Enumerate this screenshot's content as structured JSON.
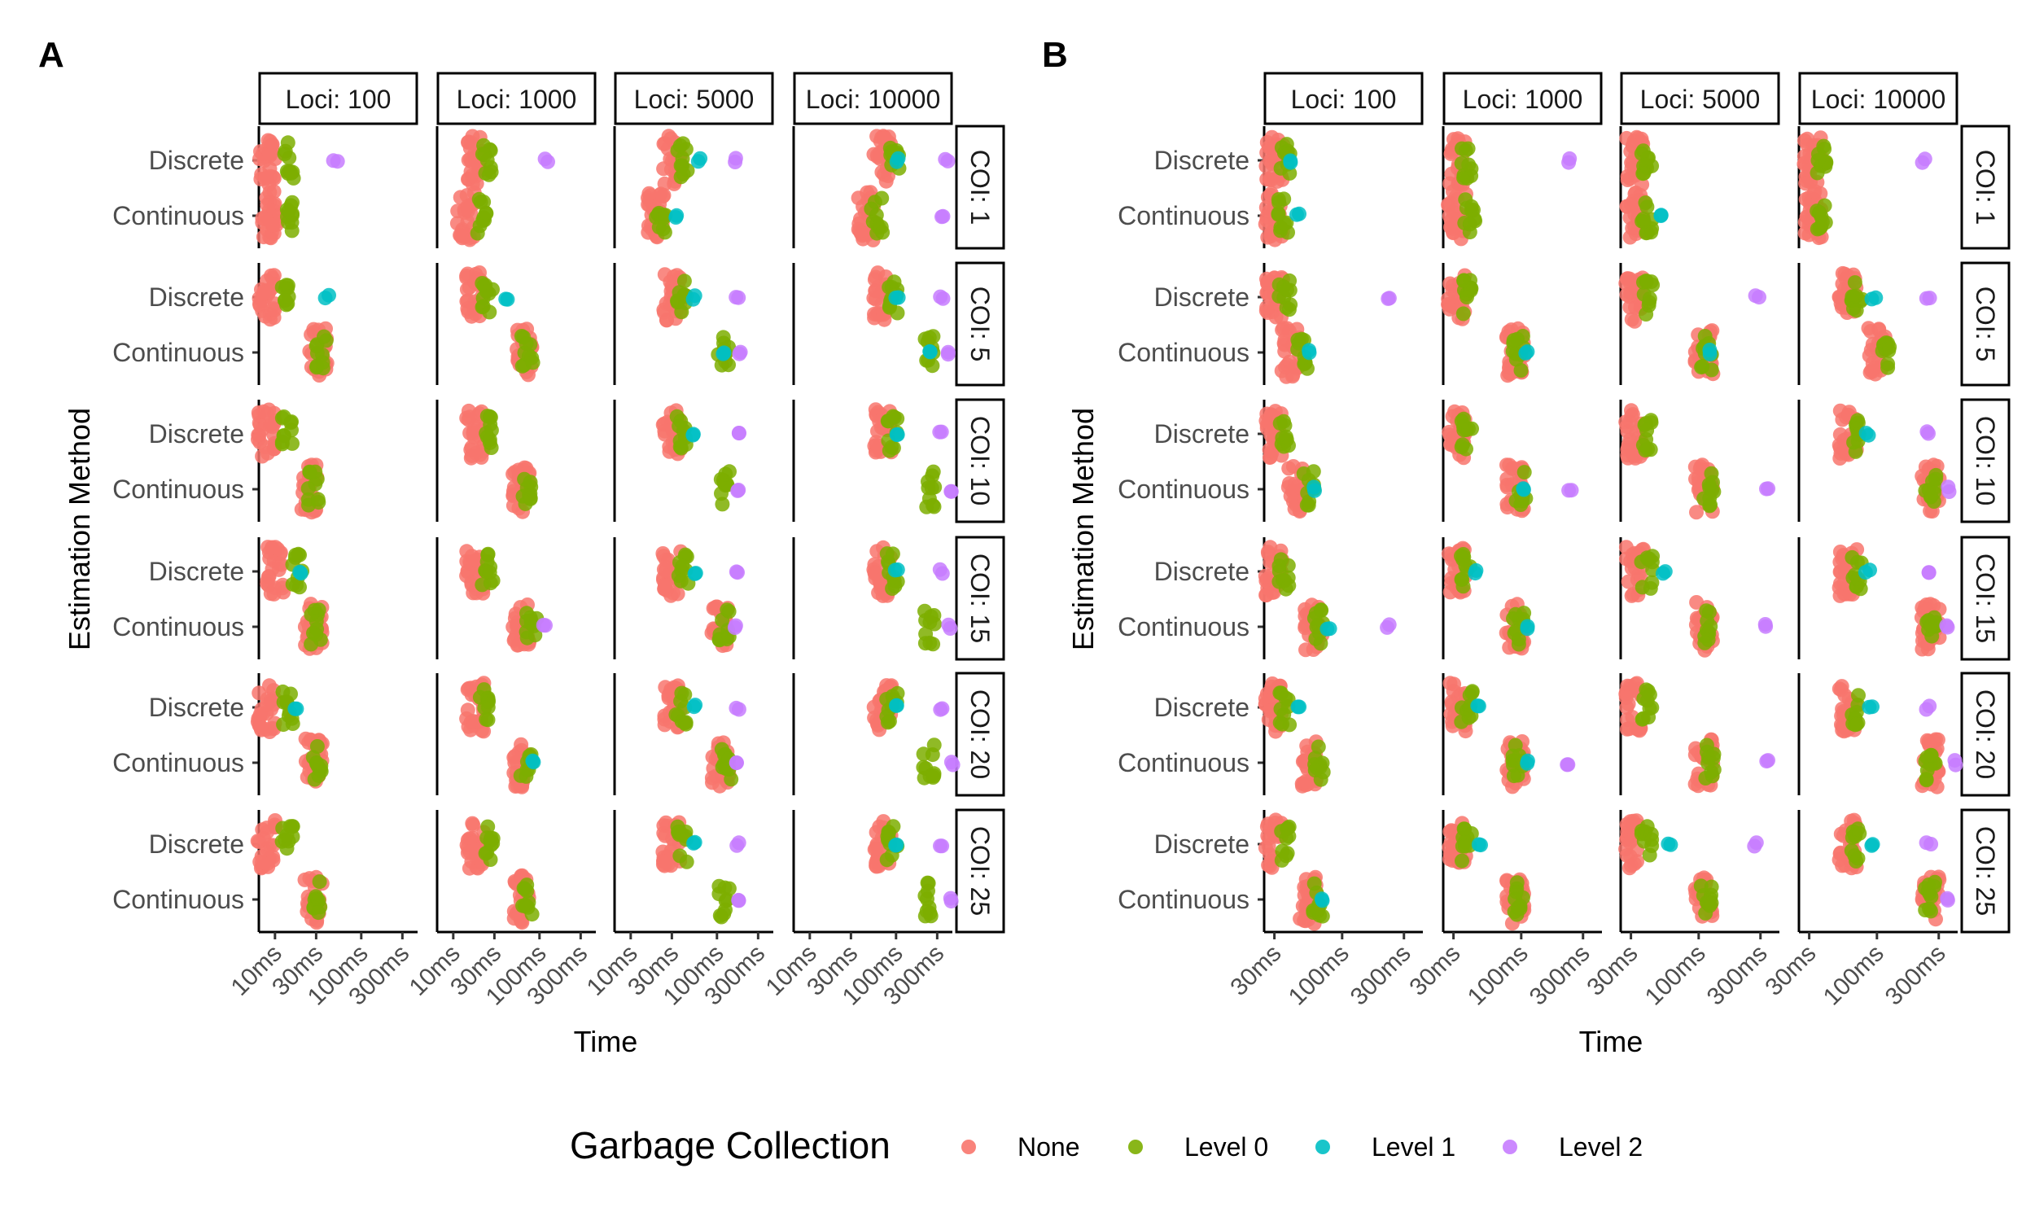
{
  "figure": {
    "legend": {
      "title": "Garbage Collection",
      "items": [
        {
          "label": "None",
          "color": "#F8766D"
        },
        {
          "label": "Level 0",
          "color": "#7CAE00"
        },
        {
          "label": "Level 1",
          "color": "#00BFC4"
        },
        {
          "label": "Level 2",
          "color": "#C77CFF"
        }
      ]
    }
  },
  "chart_data": [
    {
      "type": "scatter",
      "panel_label": "A",
      "xlabel": "Time",
      "ylabel": "Estimation Method",
      "x_scale": "log10",
      "xticks": [
        "10ms",
        "30ms",
        "100ms",
        "300ms"
      ],
      "xlim_ms": [
        6.5,
        450
      ],
      "categories": [
        "Discrete",
        "Continuous"
      ],
      "facet_columns": [
        "Loci: 100",
        "Loci: 1000",
        "Loci: 5000",
        "Loci: 10000"
      ],
      "facet_rows": [
        "COI: 1",
        "COI: 5",
        "COI: 10",
        "COI: 15",
        "COI: 20",
        "COI: 25"
      ],
      "series_names": [
        "None",
        "Level 0",
        "Level 1",
        "Level 2"
      ],
      "approx_values_ms": {
        "note_rows": "arrays indexed [COI row][Loci column] as [Discrete, Continuous] per series",
        "None": [
          [
            [
              8,
              9
            ],
            [
              18,
              14
            ],
            [
              30,
              20
            ],
            [
              70,
              45
            ]
          ],
          [
            [
              8,
              32
            ],
            [
              18,
              65
            ],
            [
              30,
              null
            ],
            [
              70,
              null
            ]
          ],
          [
            [
              8,
              25
            ],
            [
              18,
              60
            ],
            [
              30,
              null
            ],
            [
              70,
              null
            ]
          ],
          [
            [
              10,
              28
            ],
            [
              18,
              62
            ],
            [
              30,
              110
            ],
            [
              70,
              null
            ]
          ],
          [
            [
              8,
              28
            ],
            [
              18,
              62
            ],
            [
              30,
              110
            ],
            [
              70,
              null
            ]
          ],
          [
            [
              8,
              28
            ],
            [
              18,
              60
            ],
            [
              30,
              null
            ],
            [
              70,
              null
            ]
          ]
        ],
        "Level 0": [
          [
            [
              15,
              15
            ],
            [
              25,
              22
            ],
            [
              40,
              22
            ],
            [
              95,
              60
            ]
          ],
          [
            [
              14,
              35
            ],
            [
              25,
              72
            ],
            [
              40,
              120
            ],
            [
              90,
              240
            ]
          ],
          [
            [
              14,
              28
            ],
            [
              25,
              72
            ],
            [
              40,
              120
            ],
            [
              90,
              250
            ]
          ],
          [
            [
              18,
              30
            ],
            [
              25,
              80
            ],
            [
              40,
              120
            ],
            [
              90,
              250
            ]
          ],
          [
            [
              14,
              30
            ],
            [
              22,
              70
            ],
            [
              38,
              130
            ],
            [
              90,
              240
            ]
          ],
          [
            [
              14,
              32
            ],
            [
              25,
              72
            ],
            [
              40,
              120
            ],
            [
              90,
              240
            ]
          ]
        ],
        "Level 1": [
          [
            [
              null,
              null
            ],
            [
              null,
              null
            ],
            [
              60,
              35
            ],
            [
              100,
              null
            ]
          ],
          [
            [
              40,
              null
            ],
            [
              40,
              null
            ],
            [
              55,
              120
            ],
            [
              100,
              250
            ]
          ],
          [
            [
              null,
              null
            ],
            [
              null,
              null
            ],
            [
              55,
              null
            ],
            [
              100,
              null
            ]
          ],
          [
            [
              20,
              null
            ],
            [
              null,
              null
            ],
            [
              55,
              null
            ],
            [
              100,
              null
            ]
          ],
          [
            [
              18,
              null
            ],
            [
              null,
              80
            ],
            [
              55,
              null
            ],
            [
              100,
              null
            ]
          ],
          [
            [
              null,
              null
            ],
            [
              null,
              null
            ],
            [
              55,
              null
            ],
            [
              100,
              null
            ]
          ]
        ],
        "Level 2": [
          [
            [
              50,
              null
            ],
            [
              120,
              null
            ],
            [
              170,
              null
            ],
            [
              380,
              330
            ]
          ],
          [
            [
              null,
              null
            ],
            [
              null,
              null
            ],
            [
              170,
              180
            ],
            [
              330,
              420
            ]
          ],
          [
            [
              null,
              null
            ],
            [
              null,
              null
            ],
            [
              170,
              180
            ],
            [
              330,
              420
            ]
          ],
          [
            [
              null,
              null
            ],
            [
              null,
              110
            ],
            [
              170,
              170
            ],
            [
              330,
              420
            ]
          ],
          [
            [
              null,
              null
            ],
            [
              null,
              null
            ],
            [
              170,
              170
            ],
            [
              330,
              430
            ]
          ],
          [
            [
              null,
              null
            ],
            [
              null,
              null
            ],
            [
              170,
              170
            ],
            [
              330,
              420
            ]
          ]
        ]
      }
    },
    {
      "type": "scatter",
      "panel_label": "B",
      "xlabel": "Time",
      "ylabel": "Estimation Method",
      "x_scale": "log10",
      "xticks": [
        "30ms",
        "100ms",
        "300ms"
      ],
      "xlim_ms": [
        25,
        420
      ],
      "categories": [
        "Discrete",
        "Continuous"
      ],
      "facet_columns": [
        "Loci: 100",
        "Loci: 1000",
        "Loci: 5000",
        "Loci: 10000"
      ],
      "facet_rows": [
        "COI: 1",
        "COI: 5",
        "COI: 10",
        "COI: 15",
        "COI: 20",
        "COI: 25"
      ],
      "series_names": [
        "None",
        "Level 0",
        "Level 1",
        "Level 2"
      ],
      "approx_values_ms": {
        "None": [
          [
            [
              30,
              30
            ],
            [
              32,
              32
            ],
            [
              32,
              32
            ],
            [
              32,
              32
            ]
          ],
          [
            [
              30,
              40
            ],
            [
              32,
              90
            ],
            [
              32,
              110
            ],
            [
              60,
              100
            ]
          ],
          [
            [
              30,
              45
            ],
            [
              32,
              90
            ],
            [
              32,
              110
            ],
            [
              60,
              260
            ]
          ],
          [
            [
              30,
              60
            ],
            [
              32,
              90
            ],
            [
              32,
              110
            ],
            [
              60,
              260
            ]
          ],
          [
            [
              30,
              55
            ],
            [
              32,
              90
            ],
            [
              32,
              110
            ],
            [
              60,
              260
            ]
          ],
          [
            [
              30,
              55
            ],
            [
              32,
              90
            ],
            [
              32,
              110
            ],
            [
              60,
              260
            ]
          ]
        ],
        "Level 0": [
          [
            [
              36,
              35
            ],
            [
              38,
              40
            ],
            [
              40,
              40
            ],
            [
              38,
              38
            ]
          ],
          [
            [
              36,
              50
            ],
            [
              38,
              95
            ],
            [
              40,
              115
            ],
            [
              70,
              120
            ]
          ],
          [
            [
              36,
              55
            ],
            [
              38,
              100
            ],
            [
              40,
              120
            ],
            [
              70,
              260
            ]
          ],
          [
            [
              36,
              65
            ],
            [
              38,
              95
            ],
            [
              40,
              120
            ],
            [
              70,
              260
            ]
          ],
          [
            [
              36,
              65
            ],
            [
              38,
              95
            ],
            [
              40,
              125
            ],
            [
              70,
              260
            ]
          ],
          [
            [
              36,
              65
            ],
            [
              38,
              95
            ],
            [
              40,
              115
            ],
            [
              70,
              260
            ]
          ]
        ],
        "Level 1": [
          [
            [
              40,
              45
            ],
            [
              null,
              null
            ],
            [
              null,
              50
            ],
            [
              null,
              null
            ]
          ],
          [
            [
              null,
              55
            ],
            [
              null,
              110
            ],
            [
              null,
              120
            ],
            [
              95,
              null
            ]
          ],
          [
            [
              null,
              60
            ],
            [
              null,
              105
            ],
            [
              null,
              null
            ],
            [
              85,
              null
            ]
          ],
          [
            [
              null,
              80
            ],
            [
              45,
              110
            ],
            [
              55,
              null
            ],
            [
              85,
              null
            ]
          ],
          [
            [
              45,
              null
            ],
            [
              48,
              110
            ],
            [
              null,
              null
            ],
            [
              90,
              null
            ]
          ],
          [
            [
              null,
              70
            ],
            [
              48,
              null
            ],
            [
              60,
              null
            ],
            [
              90,
              null
            ]
          ]
        ],
        "Level 2": [
          [
            [
              null,
              null
            ],
            [
              240,
              null
            ],
            [
              null,
              null
            ],
            [
              230,
              null
            ]
          ],
          [
            [
              230,
              null
            ],
            [
              null,
              null
            ],
            [
              280,
              null
            ],
            [
              250,
              null
            ]
          ],
          [
            [
              null,
              null
            ],
            [
              null,
              240
            ],
            [
              null,
              330
            ],
            [
              250,
              360
            ]
          ],
          [
            [
              null,
              230
            ],
            [
              null,
              null
            ],
            [
              null,
              330
            ],
            [
              250,
              360
            ]
          ],
          [
            [
              null,
              null
            ],
            [
              null,
              230
            ],
            [
              null,
              330
            ],
            [
              250,
              400
            ]
          ],
          [
            [
              null,
              null
            ],
            [
              null,
              null
            ],
            [
              280,
              null
            ],
            [
              250,
              360
            ]
          ]
        ]
      }
    }
  ]
}
